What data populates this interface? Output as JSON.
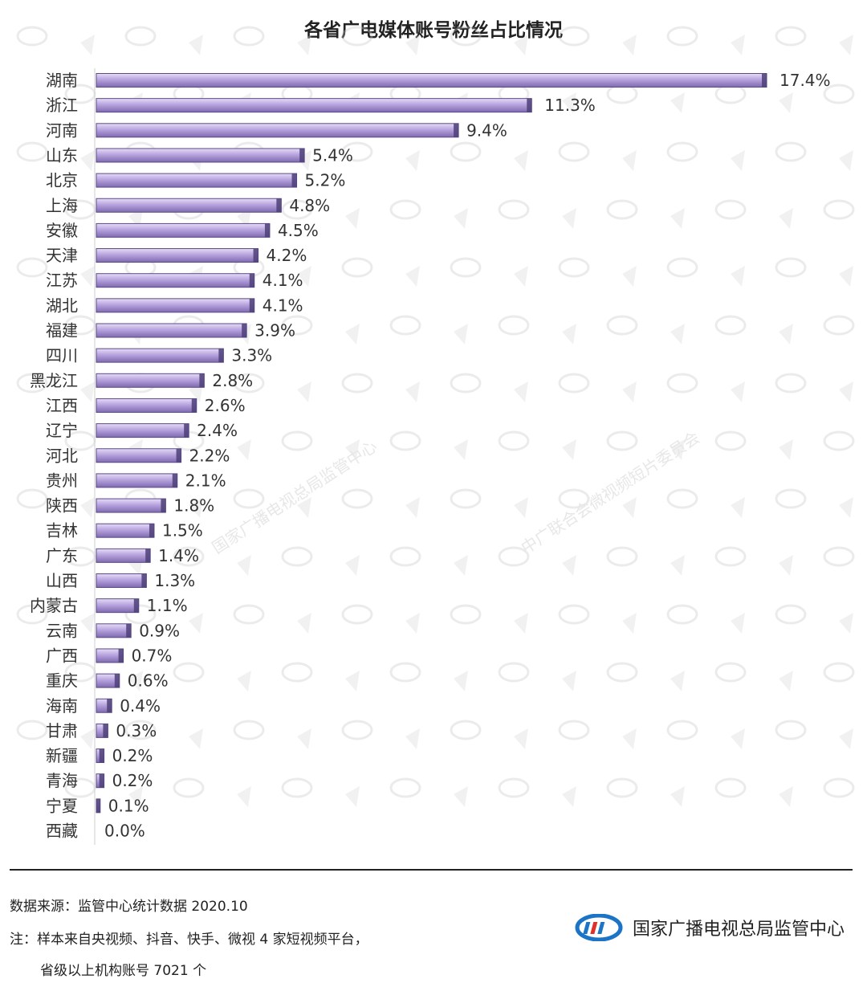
{
  "chart_data": {
    "type": "bar",
    "orientation": "horizontal",
    "title": "各省广电媒体账号粉丝占比情况",
    "categories": [
      "湖南",
      "浙江",
      "河南",
      "山东",
      "北京",
      "上海",
      "安徽",
      "天津",
      "江苏",
      "湖北",
      "福建",
      "四川",
      "黑龙江",
      "江西",
      "辽宁",
      "河北",
      "贵州",
      "陕西",
      "吉林",
      "广东",
      "山西",
      "内蒙古",
      "云南",
      "广西",
      "重庆",
      "海南",
      "甘肃",
      "新疆",
      "青海",
      "宁夏",
      "西藏"
    ],
    "values": [
      17.4,
      11.3,
      9.4,
      5.4,
      5.2,
      4.8,
      4.5,
      4.2,
      4.1,
      4.1,
      3.9,
      3.3,
      2.8,
      2.6,
      2.4,
      2.2,
      2.1,
      1.8,
      1.5,
      1.4,
      1.3,
      1.1,
      0.9,
      0.7,
      0.6,
      0.4,
      0.3,
      0.2,
      0.2,
      0.1,
      0.0
    ],
    "value_labels": [
      "17.4%",
      "11.3%",
      "9.4%",
      "5.4%",
      "5.2%",
      "4.8%",
      "4.5%",
      "4.2%",
      "4.1%",
      "4.1%",
      "3.9%",
      "3.3%",
      "2.8%",
      "2.6%",
      "2.4%",
      "2.2%",
      "2.1%",
      "1.8%",
      "1.5%",
      "1.4%",
      "1.3%",
      "1.1%",
      "0.9%",
      "0.7%",
      "0.6%",
      "0.4%",
      "0.3%",
      "0.2%",
      "0.2%",
      "0.1%",
      "0.0%"
    ],
    "unit": "%",
    "xlim": [
      0,
      17.4
    ],
    "bar_color": "#b6a2dc",
    "bar_edge_color": "#5b4a86"
  },
  "watermarks": [
    "国家广播电视总局监管中心",
    "中广联合会微视频短片委员会"
  ],
  "footer": {
    "source": "数据来源：监管中心统计数据 2020.10",
    "note_line1": "注：样本来自央视频、抖音、快手、微视 4 家短视频平台，",
    "note_line2": "省级以上机构账号 7021 个",
    "org_name": "国家广播电视总局监管中心",
    "logo_icon": "nrta-logo-icon"
  },
  "colors": {
    "logo_blue": "#1b74c6",
    "logo_red": "#e0302a"
  }
}
